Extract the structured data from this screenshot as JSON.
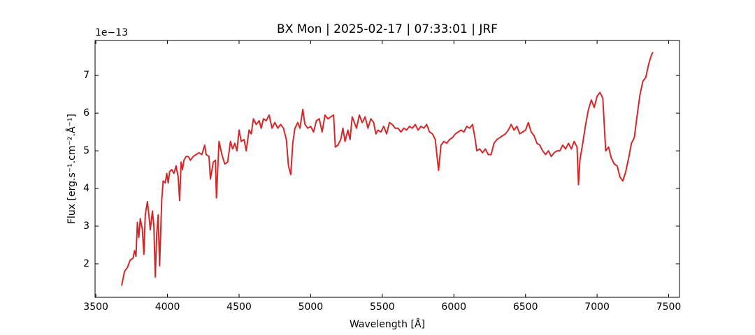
{
  "chart_data": {
    "type": "line",
    "title": "BX Mon | 2025-02-17 | 07:33:01 | JRF",
    "xlabel": "Wavelength [Å]",
    "ylabel": "Flux [erg.s⁻¹.cm⁻².Å⁻¹]",
    "y_offset_label": "1e−13",
    "color": "#d62728",
    "xlim": [
      3494.5,
      7575.5
    ],
    "ylim": [
      1.11,
      7.93
    ],
    "xticks": [
      3500,
      4000,
      4500,
      5000,
      5500,
      6000,
      6500,
      7000,
      7500
    ],
    "yticks": [
      2,
      3,
      4,
      5,
      6,
      7
    ],
    "x": [
      3680,
      3700,
      3720,
      3740,
      3760,
      3770,
      3780,
      3790,
      3800,
      3810,
      3825,
      3835,
      3845,
      3860,
      3870,
      3880,
      3895,
      3905,
      3915,
      3925,
      3935,
      3945,
      3960,
      3970,
      3985,
      3995,
      4005,
      4015,
      4030,
      4045,
      4060,
      4075,
      4085,
      4095,
      4105,
      4115,
      4130,
      4145,
      4160,
      4180,
      4200,
      4220,
      4240,
      4260,
      4270,
      4290,
      4300,
      4320,
      4335,
      4342,
      4360,
      4380,
      4400,
      4420,
      4440,
      4455,
      4470,
      4485,
      4500,
      4515,
      4535,
      4550,
      4570,
      4585,
      4600,
      4620,
      4640,
      4655,
      4670,
      4690,
      4710,
      4730,
      4750,
      4770,
      4790,
      4810,
      4830,
      4845,
      4861,
      4875,
      4890,
      4910,
      4925,
      4945,
      4960,
      4980,
      5000,
      5020,
      5040,
      5060,
      5080,
      5100,
      5120,
      5140,
      5160,
      5172,
      5190,
      5210,
      5225,
      5240,
      5260,
      5275,
      5290,
      5305,
      5320,
      5340,
      5360,
      5380,
      5400,
      5420,
      5440,
      5455,
      5470,
      5490,
      5510,
      5530,
      5550,
      5570,
      5590,
      5610,
      5630,
      5650,
      5670,
      5690,
      5710,
      5730,
      5750,
      5770,
      5790,
      5810,
      5830,
      5850,
      5870,
      5893,
      5910,
      5930,
      5950,
      5970,
      5990,
      6010,
      6030,
      6050,
      6070,
      6090,
      6110,
      6130,
      6145,
      6160,
      6180,
      6200,
      6220,
      6240,
      6260,
      6280,
      6300,
      6320,
      6340,
      6360,
      6380,
      6400,
      6420,
      6440,
      6460,
      6480,
      6500,
      6520,
      6540,
      6560,
      6580,
      6600,
      6620,
      6640,
      6660,
      6680,
      6700,
      6720,
      6740,
      6760,
      6780,
      6800,
      6820,
      6840,
      6860,
      6870,
      6880,
      6900,
      6920,
      6940,
      6960,
      6980,
      7000,
      7020,
      7040,
      7060,
      7080,
      7100,
      7120,
      7140,
      7160,
      7180,
      7200,
      7220,
      7240,
      7260,
      7280,
      7300,
      7320,
      7340,
      7360,
      7380,
      7390
    ],
    "values": [
      1.42,
      1.8,
      1.9,
      2.1,
      2.15,
      2.35,
      2.2,
      3.1,
      2.7,
      3.2,
      2.9,
      2.25,
      3.3,
      3.65,
      3.3,
      2.9,
      3.4,
      3.0,
      1.65,
      2.8,
      3.3,
      1.95,
      3.7,
      4.2,
      4.15,
      4.4,
      4.15,
      4.45,
      4.5,
      4.4,
      4.6,
      4.3,
      3.68,
      4.7,
      4.5,
      4.75,
      4.85,
      4.85,
      4.75,
      4.85,
      4.9,
      4.95,
      4.9,
      5.15,
      4.9,
      4.85,
      4.25,
      4.7,
      4.75,
      3.75,
      5.25,
      4.9,
      4.65,
      4.7,
      5.25,
      5.05,
      5.2,
      5.0,
      5.55,
      5.25,
      5.3,
      5.0,
      5.55,
      5.45,
      5.85,
      5.7,
      5.8,
      5.6,
      5.85,
      5.8,
      5.95,
      5.6,
      5.75,
      5.6,
      5.7,
      5.6,
      5.3,
      4.6,
      4.37,
      5.2,
      5.6,
      5.75,
      5.6,
      6.1,
      5.7,
      5.6,
      5.65,
      5.5,
      5.8,
      5.85,
      5.5,
      5.95,
      5.85,
      5.9,
      5.95,
      5.1,
      5.15,
      5.3,
      5.6,
      5.25,
      5.55,
      5.3,
      5.9,
      5.75,
      5.6,
      5.95,
      5.75,
      5.9,
      5.6,
      5.85,
      5.75,
      5.45,
      5.55,
      5.5,
      5.65,
      5.45,
      5.75,
      5.7,
      5.6,
      5.6,
      5.5,
      5.6,
      5.55,
      5.65,
      5.6,
      5.7,
      5.55,
      5.65,
      5.6,
      5.7,
      5.5,
      5.45,
      5.3,
      4.48,
      5.15,
      5.25,
      5.2,
      5.3,
      5.35,
      5.45,
      5.5,
      5.55,
      5.5,
      5.65,
      5.6,
      5.7,
      5.4,
      5.0,
      5.05,
      4.95,
      5.05,
      4.9,
      4.9,
      5.2,
      5.3,
      5.35,
      5.4,
      5.45,
      5.55,
      5.7,
      5.55,
      5.65,
      5.45,
      5.5,
      5.55,
      5.75,
      5.5,
      5.4,
      5.2,
      5.15,
      5.0,
      4.9,
      5.0,
      4.85,
      4.95,
      5.0,
      5.0,
      5.15,
      5.05,
      5.2,
      5.05,
      5.25,
      5.1,
      4.1,
      4.75,
      5.2,
      5.7,
      6.1,
      6.35,
      6.15,
      6.45,
      6.55,
      6.4,
      5.0,
      5.1,
      4.8,
      4.65,
      4.6,
      4.3,
      4.2,
      4.45,
      4.8,
      5.2,
      5.35,
      5.95,
      6.5,
      6.85,
      6.95,
      7.3,
      7.55,
      7.62
    ]
  }
}
